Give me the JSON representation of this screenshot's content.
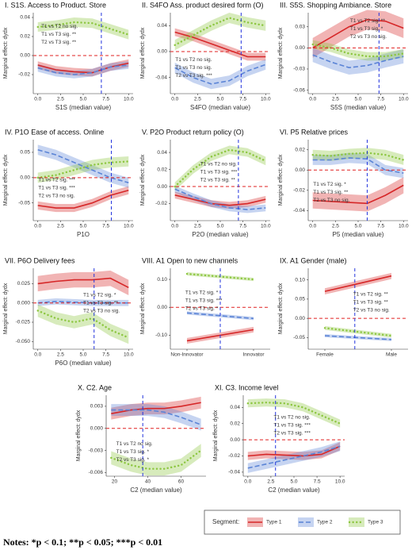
{
  "chart_data": [
    {
      "type": "line",
      "title": "I. S1S. Access to Product. Store",
      "xlabel": "S1S (median value)",
      "ylabel": "Marginal effect: dydx",
      "x": [
        0,
        2,
        4,
        6,
        8,
        10
      ],
      "xlim": [
        -0.5,
        10.5
      ],
      "xticks": [
        {
          "value": 0,
          "label": "0.0"
        },
        2.5,
        {
          "value": 5,
          "label": "5.0"
        },
        7.5,
        {
          "value": 10,
          "label": "10.0"
        }
      ],
      "ylim": [
        -0.04,
        0.045
      ],
      "yticks": [
        -0.02,
        {
          "value": 0,
          "label": "0.00"
        },
        0.02,
        0.04
      ],
      "vline": 7,
      "hline": 0,
      "annotations": [
        "T1 vs T2 no sig.",
        "T1 vs T3 sig. **",
        "T2 vs T3 sig. **"
      ],
      "series": [
        {
          "name": "Type 1",
          "color": "#d62728",
          "dash": "solid",
          "values": [
            -0.01,
            -0.015,
            -0.017,
            -0.018,
            -0.012,
            -0.008
          ],
          "ci": 0.004
        },
        {
          "name": "Type 2",
          "color": "#5b84d6",
          "dash": "dashed",
          "values": [
            -0.013,
            -0.018,
            -0.02,
            -0.018,
            -0.012,
            -0.01
          ],
          "ci": 0.004
        },
        {
          "name": "Type 3",
          "color": "#8cc63f",
          "dash": "dotted",
          "values": [
            0.03,
            0.032,
            0.035,
            0.034,
            0.028,
            0.022
          ],
          "ci": 0.005
        }
      ]
    },
    {
      "type": "line",
      "title": "II. S4FO  Ass. product desired form (O)",
      "xlabel": "S4FO (median value)",
      "ylabel": "Marginal effect: dydx",
      "x": [
        0,
        2,
        4,
        6,
        8,
        10
      ],
      "xlim": [
        -0.5,
        10.5
      ],
      "xticks": [
        {
          "value": 0,
          "label": "0.0"
        },
        2.5,
        {
          "value": 5,
          "label": "5.0"
        },
        7.5,
        {
          "value": 10,
          "label": "10.0"
        }
      ],
      "ylim": [
        -0.065,
        0.06
      ],
      "yticks": [
        -0.04,
        {
          "value": 0,
          "label": "0.00"
        },
        0.04
      ],
      "vline": 7.3,
      "hline": 0,
      "annotations": [
        "T1 vs T2 no sig.",
        "T1 vs T3  no sig.",
        "T2 vs T3 sig. ***"
      ],
      "series": [
        {
          "color": "#d62728",
          "dash": "solid",
          "values": [
            0.03,
            0.022,
            0.012,
            0.002,
            -0.008,
            -0.008
          ],
          "ci": 0.006
        },
        {
          "color": "#5b84d6",
          "dash": "dashed",
          "values": [
            -0.025,
            -0.04,
            -0.05,
            -0.045,
            -0.03,
            -0.02
          ],
          "ci": 0.008
        },
        {
          "color": "#8cc63f",
          "dash": "dotted",
          "values": [
            0.01,
            0.025,
            0.04,
            0.052,
            0.045,
            0.04
          ],
          "ci": 0.008
        }
      ]
    },
    {
      "type": "line",
      "title": "III. S5S. Shopping Ambiance. Store",
      "xlabel": "S5S (median value)",
      "ylabel": "Marginal effect: dydx",
      "x": [
        0,
        2,
        4,
        6,
        8,
        10
      ],
      "xlim": [
        -0.5,
        10.5
      ],
      "xticks": [
        {
          "value": 0,
          "label": "0.0"
        },
        2.5,
        {
          "value": 5,
          "label": "5.0"
        },
        7.5,
        {
          "value": 10,
          "label": "10.0"
        }
      ],
      "ylim": [
        -0.065,
        0.05
      ],
      "yticks": [
        -0.06,
        -0.03,
        {
          "value": 0,
          "label": "0.00"
        },
        0.03
      ],
      "vline": 7.3,
      "hline": 0,
      "annotations": [
        "T1 vs T2 sig. **",
        "T1 vs T3 sig. *",
        "T2 vs T3 no sig."
      ],
      "series": [
        {
          "color": "#d62728",
          "dash": "solid",
          "values": [
            0.0,
            0.015,
            0.03,
            0.04,
            0.038,
            0.028
          ],
          "ci": 0.014
        },
        {
          "color": "#5b84d6",
          "dash": "dashed",
          "values": [
            -0.01,
            -0.02,
            -0.028,
            -0.025,
            -0.018,
            -0.012
          ],
          "ci": 0.01
        },
        {
          "color": "#8cc63f",
          "dash": "dotted",
          "values": [
            0.005,
            0.0,
            -0.008,
            -0.012,
            -0.012,
            -0.008
          ],
          "ci": 0.006
        }
      ]
    },
    {
      "type": "line",
      "title": "IV. P1O Ease of access. Online",
      "xlabel": "P1O",
      "ylabel": "Marginal effect: dydx",
      "x": [
        0,
        2,
        4,
        6,
        8,
        10
      ],
      "xlim": [
        -0.5,
        10.5
      ],
      "xticks": [
        {
          "value": 0,
          "label": "0.0"
        },
        2.5,
        {
          "value": 5,
          "label": "5.0"
        },
        7.5,
        {
          "value": 10,
          "label": "10.0"
        }
      ],
      "ylim": [
        -0.085,
        0.075
      ],
      "yticks": [
        -0.05,
        {
          "value": 0,
          "label": "0.00"
        },
        0.05
      ],
      "vline": 8.1,
      "hline": 0,
      "annotations": [
        "T1 vs T2 sig. ***",
        "T1 vs T3 sig. ***",
        "T2 vs T3 no sig."
      ],
      "series": [
        {
          "color": "#d62728",
          "dash": "solid",
          "values": [
            -0.055,
            -0.06,
            -0.06,
            -0.05,
            -0.035,
            -0.025
          ],
          "ci": 0.008
        },
        {
          "color": "#5b84d6",
          "dash": "dashed",
          "values": [
            0.055,
            0.045,
            0.03,
            0.015,
            0.0,
            -0.01
          ],
          "ci": 0.01
        },
        {
          "color": "#8cc63f",
          "dash": "dotted",
          "values": [
            0.0,
            0.005,
            0.015,
            0.025,
            0.03,
            0.032
          ],
          "ci": 0.01
        }
      ]
    },
    {
      "type": "line",
      "title": "V. P2O Product return policy (O)",
      "xlabel": "P2O (median value)",
      "ylabel": "Marginal effect: dydx",
      "x": [
        0,
        2,
        4,
        6,
        8,
        10
      ],
      "xlim": [
        -0.5,
        10.5
      ],
      "xticks": [
        {
          "value": 0,
          "label": "0.0"
        },
        2.5,
        {
          "value": 5,
          "label": "5.0"
        },
        7.5,
        {
          "value": 10,
          "label": "10.0"
        }
      ],
      "ylim": [
        -0.04,
        0.055
      ],
      "yticks": [
        -0.02,
        {
          "value": 0,
          "label": "0.00"
        },
        0.02,
        0.04
      ],
      "vline": 7,
      "hline": 0,
      "annotations": [
        "T1 vs T2 no sig.",
        "T1 vs T3 sig. ***",
        "T2 vs T3 sig. **"
      ],
      "series": [
        {
          "color": "#d62728",
          "dash": "solid",
          "values": [
            -0.01,
            -0.015,
            -0.02,
            -0.022,
            -0.02,
            -0.015
          ],
          "ci": 0.004
        },
        {
          "color": "#5b84d6",
          "dash": "dashed",
          "values": [
            -0.003,
            -0.012,
            -0.02,
            -0.025,
            -0.027,
            -0.025
          ],
          "ci": 0.004
        },
        {
          "color": "#8cc63f",
          "dash": "dotted",
          "values": [
            0.0,
            0.02,
            0.035,
            0.043,
            0.04,
            0.03
          ],
          "ci": 0.005
        }
      ]
    },
    {
      "type": "line",
      "title": "VI. P5 Relative prices",
      "xlabel": "P5 (median value)",
      "ylabel": "Marginal effect: dydx",
      "x": [
        0,
        2,
        4,
        6,
        8,
        10
      ],
      "xlim": [
        -0.5,
        10.5
      ],
      "xticks": [
        {
          "value": 0,
          "label": "0.0"
        },
        2.5,
        {
          "value": 5,
          "label": "5.0"
        },
        7.5,
        {
          "value": 10,
          "label": "10.0"
        }
      ],
      "ylim": [
        -0.05,
        0.03
      ],
      "yticks": [
        -0.04,
        -0.02,
        {
          "value": 0,
          "label": "0.00"
        },
        0.02
      ],
      "vline": 6,
      "hline": 0,
      "annotations": [
        "T1 vs T2 sig. *",
        "T1 vs T3 sig. **",
        "T2 vs T3 no sig."
      ],
      "series": [
        {
          "color": "#d62728",
          "dash": "solid",
          "values": [
            -0.03,
            -0.031,
            -0.032,
            -0.033,
            -0.025,
            -0.015
          ],
          "ci": 0.008
        },
        {
          "color": "#5b84d6",
          "dash": "dashed",
          "values": [
            0.01,
            0.01,
            0.012,
            0.011,
            0.0,
            -0.003
          ],
          "ci": 0.005
        },
        {
          "color": "#8cc63f",
          "dash": "dotted",
          "values": [
            0.015,
            0.014,
            0.016,
            0.017,
            0.015,
            0.01
          ],
          "ci": 0.005
        }
      ]
    },
    {
      "type": "line",
      "title": "VII. P6O Delivery fees",
      "xlabel": "P6O (median value)",
      "ylabel": "Marginal effect: dydx",
      "x": [
        0,
        2,
        4,
        6,
        8,
        10
      ],
      "xlim": [
        -0.5,
        10.5
      ],
      "xticks": [
        {
          "value": 0,
          "label": "0.0"
        },
        2.5,
        {
          "value": 5,
          "label": "5.0"
        },
        7.5,
        {
          "value": 10,
          "label": "10.0"
        }
      ],
      "ylim": [
        -0.06,
        0.045
      ],
      "yticks": [
        {
          "value": -0.05,
          "label": "-0.050"
        },
        {
          "value": -0.025,
          "label": "-0.025"
        },
        {
          "value": 0,
          "label": "0.000"
        },
        {
          "value": 0.025,
          "label": "0.025"
        }
      ],
      "vline": 6.2,
      "hline": 0,
      "annotations": [
        "T1 vs T2 sig. *",
        "T1 vs T3 sig. **",
        "T2 vs T3 no sig."
      ],
      "series": [
        {
          "color": "#d62728",
          "dash": "solid",
          "values": [
            0.025,
            0.028,
            0.03,
            0.03,
            0.032,
            0.02
          ],
          "ci": 0.01
        },
        {
          "color": "#5b84d6",
          "dash": "dashed",
          "values": [
            0.0,
            0.002,
            0.001,
            0.0,
            0.0,
            0.0
          ],
          "ci": 0.004
        },
        {
          "color": "#8cc63f",
          "dash": "dotted",
          "values": [
            -0.01,
            -0.02,
            -0.025,
            -0.02,
            -0.035,
            -0.045
          ],
          "ci": 0.008
        }
      ]
    },
    {
      "type": "line",
      "title": "VIII. A1 Open to new channels",
      "xlabel": "",
      "ylabel": "Marginal effect: dydx",
      "x": [
        0,
        0.5,
        1
      ],
      "xlim": [
        -0.25,
        1.25
      ],
      "xticks": [
        {
          "value": 0,
          "label": "Non-Innovator"
        },
        {
          "value": 1,
          "label": "Innovator"
        }
      ],
      "ylim": [
        -0.15,
        0.14
      ],
      "yticks": [
        {
          "value": -0.1,
          "label": "-0.10"
        },
        {
          "value": 0,
          "label": "0.00"
        },
        {
          "value": 0.1,
          "label": "0.10"
        }
      ],
      "vline": 0.5,
      "hline": 0,
      "annotations": [
        "T1 vs T2 sig. *",
        "T1 vs T3  sig. ***",
        "T2 vs T3 sig. *"
      ],
      "series": [
        {
          "color": "#d62728",
          "dash": "solid",
          "values": [
            -0.12,
            -0.1,
            -0.08
          ],
          "ci": 0.01
        },
        {
          "color": "#5b84d6",
          "dash": "dashed",
          "values": [
            -0.02,
            -0.03,
            -0.04
          ],
          "ci": 0.006
        },
        {
          "color": "#8cc63f",
          "dash": "dotted",
          "values": [
            0.12,
            0.11,
            0.1
          ],
          "ci": 0.006
        }
      ]
    },
    {
      "type": "line",
      "title": "IX. A1 Gender (male)",
      "xlabel": "",
      "ylabel": "Marginal effect: dydx",
      "x": [
        0,
        0.5,
        1
      ],
      "xlim": [
        -0.25,
        1.25
      ],
      "xticks": [
        {
          "value": 0,
          "label": "Female"
        },
        {
          "value": 1,
          "label": "Male"
        }
      ],
      "ylim": [
        -0.08,
        0.13
      ],
      "yticks": [
        -0.05,
        {
          "value": 0,
          "label": "0.00"
        },
        0.05,
        {
          "value": 0.1,
          "label": "0.10"
        }
      ],
      "vline": 0.45,
      "hline": 0,
      "annotations": [
        "T1 vs T2 sig. **",
        "T1 vs T3 sig. **",
        "T2 vs T3 no sig."
      ],
      "series": [
        {
          "color": "#d62728",
          "dash": "solid",
          "values": [
            0.07,
            0.09,
            0.11
          ],
          "ci": 0.008
        },
        {
          "color": "#5b84d6",
          "dash": "dashed",
          "values": [
            -0.045,
            -0.05,
            -0.055
          ],
          "ci": 0.004
        },
        {
          "color": "#8cc63f",
          "dash": "dotted",
          "values": [
            -0.025,
            -0.035,
            -0.045
          ],
          "ci": 0.005
        }
      ]
    },
    {
      "type": "line",
      "title": "X. C2. Age",
      "xlabel": "C2 (median value)",
      "ylabel": "Marginal effect: dydx",
      "x": [
        18,
        30,
        40,
        50,
        60,
        72
      ],
      "xlim": [
        15,
        75
      ],
      "xticks": [
        20,
        40,
        60
      ],
      "ylim": [
        -0.0065,
        0.0045
      ],
      "yticks": [
        {
          "value": -0.006,
          "label": "-0.006"
        },
        {
          "value": -0.003,
          "label": "-0.003"
        },
        {
          "value": 0,
          "label": "0.000"
        },
        {
          "value": 0.003,
          "label": "0.003"
        }
      ],
      "vline": 37,
      "hline": 0,
      "annotations": [
        "T1 vs T2  no sig.",
        "T1 vs T3 sig. *",
        "T2 vs T3 sig. *"
      ],
      "series": [
        {
          "color": "#d62728",
          "dash": "solid",
          "values": [
            0.002,
            0.0025,
            0.0027,
            0.0027,
            0.003,
            0.0035
          ],
          "ci": 0.0008
        },
        {
          "color": "#5b84d6",
          "dash": "dashed",
          "values": [
            0.0025,
            0.0025,
            0.0025,
            0.0022,
            0.0015,
            0.0005
          ],
          "ci": 0.0008
        },
        {
          "color": "#8cc63f",
          "dash": "dotted",
          "values": [
            -0.004,
            -0.005,
            -0.0055,
            -0.0055,
            -0.005,
            -0.003
          ],
          "ci": 0.0009
        }
      ]
    },
    {
      "type": "line",
      "title": "XI. C3. Income level",
      "xlabel": "C2 (median value)",
      "ylabel": "Marginal effect: dydx",
      "x": [
        0,
        2,
        4,
        6,
        8,
        10
      ],
      "xlim": [
        -0.5,
        10.5
      ],
      "xticks": [
        {
          "value": 0,
          "label": "0.0"
        },
        2.5,
        {
          "value": 5,
          "label": "5.0"
        },
        7.5,
        {
          "value": 10,
          "label": "10.0"
        }
      ],
      "ylim": [
        -0.045,
        0.055
      ],
      "yticks": [
        -0.04,
        -0.02,
        {
          "value": 0,
          "label": "0.00"
        },
        0.02,
        0.04
      ],
      "vline": 3,
      "hline": 0,
      "annotations": [
        "T1 vs T2  no sig.",
        "T1 vs T3 sig. ***",
        "T2 vs T3 sig. ***"
      ],
      "series": [
        {
          "color": "#d62728",
          "dash": "solid",
          "values": [
            -0.02,
            -0.018,
            -0.019,
            -0.02,
            -0.018,
            -0.008
          ],
          "ci": 0.005
        },
        {
          "color": "#5b84d6",
          "dash": "dashed",
          "values": [
            -0.035,
            -0.03,
            -0.025,
            -0.02,
            -0.015,
            -0.008
          ],
          "ci": 0.006
        },
        {
          "color": "#8cc63f",
          "dash": "dotted",
          "values": [
            0.045,
            0.046,
            0.045,
            0.04,
            0.03,
            0.02
          ],
          "ci": 0.005
        }
      ]
    }
  ],
  "legend": {
    "title": "Segment:"
  },
  "notes": "Notes: *p < 0.1; **p < 0.05; ***p < 0.01"
}
